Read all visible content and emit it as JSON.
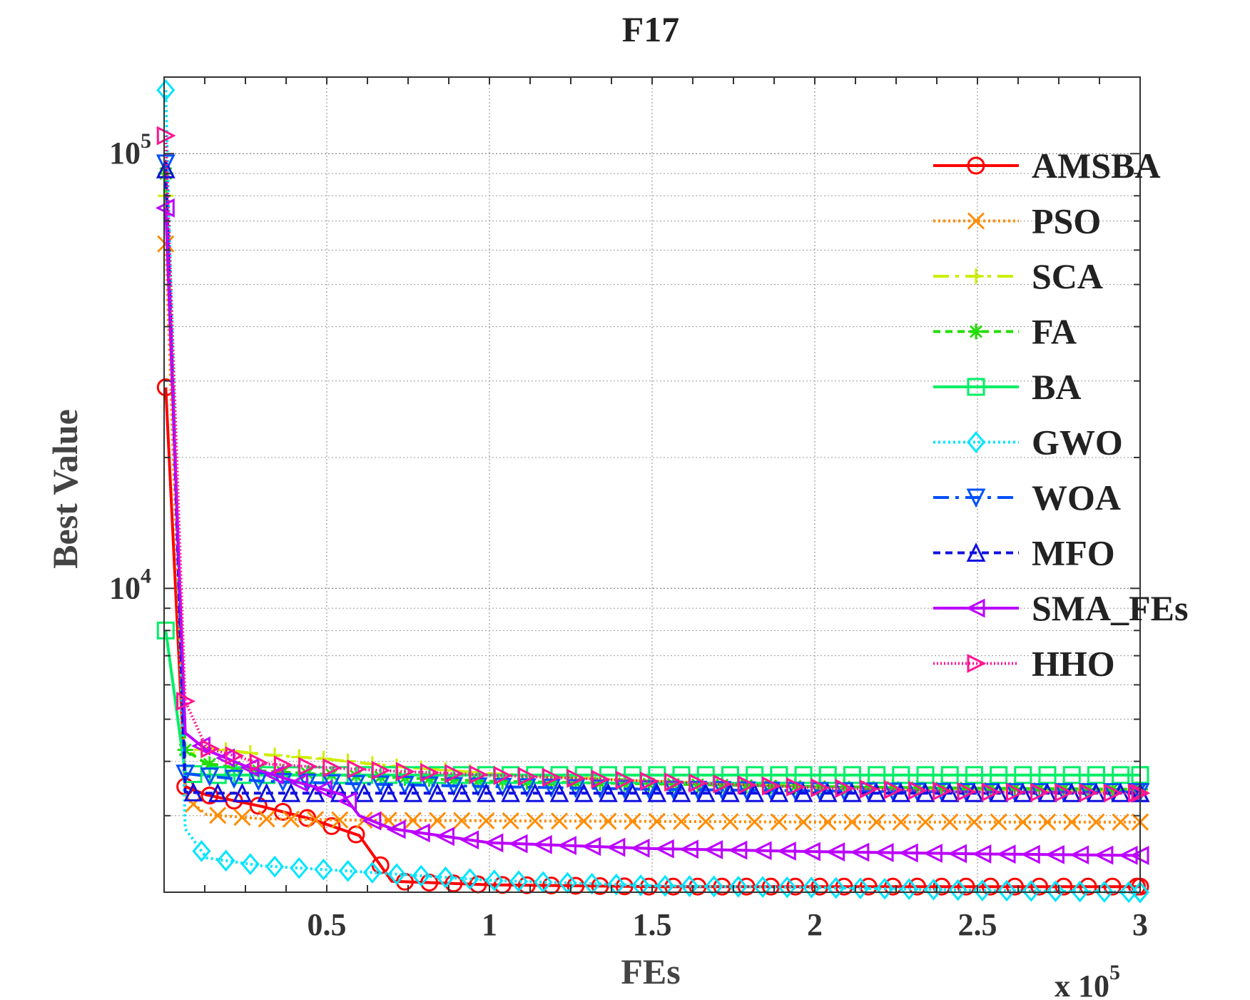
{
  "chart_data": {
    "type": "line",
    "title": "F17",
    "xlabel": "FEs",
    "ylabel": "Best Value",
    "x_multiplier_label": "x 10",
    "x_multiplier_exp": "5",
    "y_scale": "log",
    "x_range": [
      0,
      300000
    ],
    "ylim": [
      2000,
      150000
    ],
    "grid": true,
    "legend_position": "top-right",
    "x_ticks": [
      {
        "value": 50000,
        "label": "0.5"
      },
      {
        "value": 100000,
        "label": "1"
      },
      {
        "value": 150000,
        "label": "1.5"
      },
      {
        "value": 200000,
        "label": "2"
      },
      {
        "value": 250000,
        "label": "2.5"
      },
      {
        "value": 300000,
        "label": "3"
      }
    ],
    "y_ticks": [
      {
        "value": 10000,
        "base": "10",
        "exp": "4"
      },
      {
        "value": 100000,
        "base": "10",
        "exp": "5"
      }
    ],
    "series": [
      {
        "name": "AMSBA",
        "color": "#ff0000",
        "dash": "",
        "marker": "circle",
        "points": [
          [
            500,
            29000
          ],
          [
            6500,
            3500
          ],
          [
            13000,
            3350
          ],
          [
            30000,
            3150
          ],
          [
            45000,
            2950
          ],
          [
            60000,
            2700
          ],
          [
            70000,
            2120
          ],
          [
            100000,
            2080
          ],
          [
            150000,
            2060
          ],
          [
            200000,
            2060
          ],
          [
            250000,
            2060
          ],
          [
            300000,
            2060
          ]
        ]
      },
      {
        "name": "PSO",
        "color": "#ff8c00",
        "dash": "3,4",
        "marker": "x",
        "points": [
          [
            500,
            62000
          ],
          [
            6500,
            3300
          ],
          [
            13000,
            3020
          ],
          [
            30000,
            2950
          ],
          [
            60000,
            2930
          ],
          [
            100000,
            2920
          ],
          [
            150000,
            2910
          ],
          [
            200000,
            2900
          ],
          [
            250000,
            2900
          ],
          [
            300000,
            2900
          ]
        ]
      },
      {
        "name": "SCA",
        "color": "#ccee00",
        "dash": "22,9,5,9",
        "marker": "plus",
        "points": [
          [
            500,
            80000
          ],
          [
            6500,
            4100
          ],
          [
            13000,
            4300
          ],
          [
            30000,
            4150
          ],
          [
            50000,
            4050
          ],
          [
            70000,
            3900
          ],
          [
            100000,
            3750
          ],
          [
            150000,
            3600
          ],
          [
            200000,
            3500
          ],
          [
            250000,
            3450
          ],
          [
            300000,
            3400
          ]
        ]
      },
      {
        "name": "FA",
        "color": "#22dd00",
        "dash": "10,7",
        "marker": "star",
        "points": [
          [
            500,
            90000
          ],
          [
            6500,
            4250
          ],
          [
            13000,
            3950
          ],
          [
            30000,
            3800
          ],
          [
            60000,
            3700
          ],
          [
            100000,
            3600
          ],
          [
            150000,
            3550
          ],
          [
            200000,
            3500
          ],
          [
            250000,
            3470
          ],
          [
            300000,
            3450
          ]
        ]
      },
      {
        "name": "BA",
        "color": "#00ee66",
        "dash": "",
        "marker": "square",
        "points": [
          [
            500,
            8000
          ],
          [
            6500,
            3750
          ],
          [
            13000,
            3720
          ],
          [
            30000,
            3720
          ],
          [
            60000,
            3720
          ],
          [
            100000,
            3720
          ],
          [
            150000,
            3720
          ],
          [
            200000,
            3720
          ],
          [
            250000,
            3720
          ],
          [
            300000,
            3720
          ]
        ]
      },
      {
        "name": "GWO",
        "color": "#00e5ff",
        "dash": "3,4",
        "marker": "diamond",
        "points": [
          [
            500,
            140000
          ],
          [
            6500,
            2800
          ],
          [
            13000,
            2400
          ],
          [
            30000,
            2300
          ],
          [
            60000,
            2230
          ],
          [
            100000,
            2130
          ],
          [
            150000,
            2070
          ],
          [
            200000,
            2050
          ],
          [
            250000,
            2020
          ],
          [
            300000,
            2000
          ]
        ]
      },
      {
        "name": "WOA",
        "color": "#0050ff",
        "dash": "22,9,5,9",
        "marker": "triangle-down",
        "points": [
          [
            500,
            95000
          ],
          [
            6500,
            3750
          ],
          [
            13000,
            3700
          ],
          [
            30000,
            3600
          ],
          [
            60000,
            3550
          ],
          [
            100000,
            3500
          ],
          [
            150000,
            3450
          ],
          [
            200000,
            3420
          ],
          [
            250000,
            3400
          ],
          [
            300000,
            3400
          ]
        ]
      },
      {
        "name": "MFO",
        "color": "#1010e0",
        "dash": "10,7",
        "marker": "triangle-up",
        "points": [
          [
            500,
            92000
          ],
          [
            6500,
            3400
          ],
          [
            13000,
            3380
          ],
          [
            30000,
            3380
          ],
          [
            60000,
            3380
          ],
          [
            100000,
            3380
          ],
          [
            150000,
            3380
          ],
          [
            200000,
            3380
          ],
          [
            250000,
            3380
          ],
          [
            300000,
            3380
          ]
        ]
      },
      {
        "name": "SMA_FEs",
        "color": "#bb00ff",
        "dash": "",
        "marker": "triangle-left",
        "points": [
          [
            500,
            75000
          ],
          [
            6500,
            4650
          ],
          [
            13000,
            4250
          ],
          [
            25000,
            3900
          ],
          [
            40000,
            3600
          ],
          [
            55000,
            3350
          ],
          [
            60000,
            3000
          ],
          [
            70000,
            2800
          ],
          [
            100000,
            2600
          ],
          [
            150000,
            2520
          ],
          [
            200000,
            2480
          ],
          [
            250000,
            2450
          ],
          [
            300000,
            2430
          ]
        ]
      },
      {
        "name": "HHO",
        "color": "#ff1493",
        "dash": "2,3",
        "marker": "triangle-right",
        "points": [
          [
            500,
            110000
          ],
          [
            6500,
            5500
          ],
          [
            13000,
            4300
          ],
          [
            30000,
            3950
          ],
          [
            50000,
            3870
          ],
          [
            70000,
            3800
          ],
          [
            100000,
            3720
          ],
          [
            150000,
            3600
          ],
          [
            200000,
            3480
          ],
          [
            250000,
            3400
          ],
          [
            300000,
            3380
          ]
        ]
      }
    ]
  }
}
